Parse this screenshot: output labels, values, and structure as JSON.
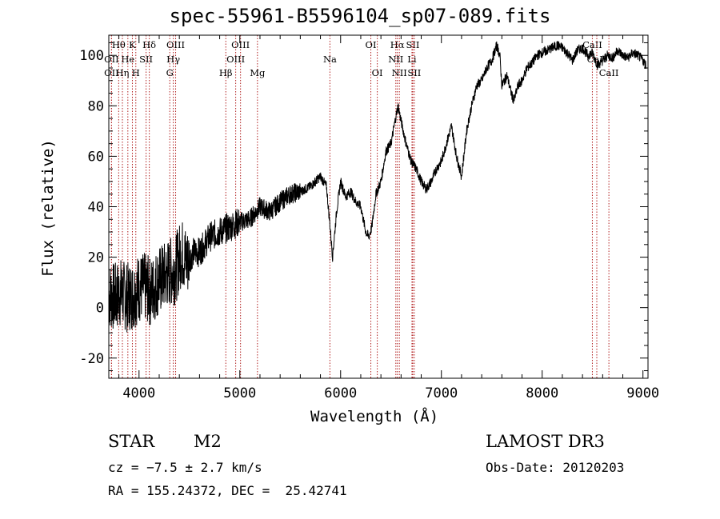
{
  "chart_data": {
    "type": "line",
    "title": "spec-55961-B5596104_sp07-089.fits",
    "xlabel": "Wavelength (Å)",
    "ylabel": "Flux (relative)",
    "xlim": [
      3700,
      9050
    ],
    "ylim": [
      -28,
      108
    ],
    "xticks": [
      4000,
      5000,
      6000,
      7000,
      8000,
      9000
    ],
    "yticks": [
      -20,
      0,
      20,
      40,
      60,
      80,
      100
    ],
    "series": [
      {
        "name": "spectrum",
        "x": [
          3700,
          3760,
          3820,
          3880,
          3940,
          4000,
          4060,
          4120,
          4180,
          4240,
          4300,
          4360,
          4420,
          4480,
          4540,
          4600,
          4700,
          4800,
          4900,
          5000,
          5100,
          5200,
          5300,
          5400,
          5500,
          5600,
          5700,
          5800,
          5860,
          5900,
          5920,
          5960,
          6000,
          6050,
          6100,
          6150,
          6200,
          6250,
          6280,
          6310,
          6350,
          6400,
          6450,
          6500,
          6550,
          6570,
          6600,
          6650,
          6700,
          6750,
          6800,
          6850,
          6900,
          6950,
          7000,
          7050,
          7100,
          7150,
          7200,
          7250,
          7300,
          7350,
          7400,
          7450,
          7500,
          7550,
          7580,
          7600,
          7650,
          7700,
          7720,
          7760,
          7800,
          7850,
          7900,
          7950,
          8000,
          8050,
          8100,
          8150,
          8200,
          8250,
          8300,
          8350,
          8400,
          8450,
          8500,
          8550,
          8600,
          8650,
          8700,
          8750,
          8800,
          8850,
          8900,
          8950,
          9000,
          9030
        ],
        "y": [
          5,
          4,
          6,
          4,
          5,
          8,
          8,
          6,
          10,
          12,
          14,
          15,
          22,
          18,
          22,
          22,
          28,
          30,
          32,
          34,
          35,
          40,
          38,
          42,
          45,
          46,
          48,
          52,
          48,
          30,
          20,
          38,
          50,
          44,
          46,
          42,
          40,
          30,
          28,
          32,
          45,
          50,
          62,
          65,
          76,
          80,
          74,
          65,
          58,
          55,
          50,
          47,
          50,
          55,
          58,
          65,
          72,
          60,
          52,
          70,
          80,
          88,
          90,
          95,
          98,
          104,
          100,
          88,
          92,
          84,
          82,
          88,
          90,
          95,
          97,
          100,
          101,
          102,
          103,
          104,
          103,
          101,
          98,
          102,
          103,
          100,
          101,
          96,
          98,
          100,
          99,
          102,
          100,
          99,
          101,
          100,
          98,
          96
        ]
      }
    ],
    "lines": [
      {
        "label": "Hθ",
        "x": 3798,
        "row": 0
      },
      {
        "label": "OII",
        "x": 3727,
        "row": 1
      },
      {
        "label": "OII",
        "x": 3727,
        "row": 2
      },
      {
        "label": "K",
        "x": 3934,
        "row": 0
      },
      {
        "label": "He",
        "x": 3889,
        "row": 1
      },
      {
        "label": "Hη",
        "x": 3835,
        "row": 2
      },
      {
        "label": "Hδ",
        "x": 4102,
        "row": 0
      },
      {
        "label": "SII",
        "x": 4070,
        "row": 1
      },
      {
        "label": "H",
        "x": 3968,
        "row": 2
      },
      {
        "label": "OIII",
        "x": 4363,
        "row": 0
      },
      {
        "label": "Hγ",
        "x": 4340,
        "row": 1
      },
      {
        "label": "G",
        "x": 4305,
        "row": 2
      },
      {
        "label": "OIII",
        "x": 5007,
        "row": 0
      },
      {
        "label": "OIII",
        "x": 4959,
        "row": 1
      },
      {
        "label": "Hβ",
        "x": 4861,
        "row": 2
      },
      {
        "label": "Mg",
        "x": 5175,
        "row": 2
      },
      {
        "label": "Na",
        "x": 5894,
        "row": 1
      },
      {
        "label": "OI",
        "x": 6300,
        "row": 0
      },
      {
        "label": "OI",
        "x": 6364,
        "row": 2
      },
      {
        "label": "Hα",
        "x": 6563,
        "row": 0
      },
      {
        "label": "SII",
        "x": 6716,
        "row": 0
      },
      {
        "label": "NII",
        "x": 6548,
        "row": 1
      },
      {
        "label": "Li",
        "x": 6708,
        "row": 1
      },
      {
        "label": "NII",
        "x": 6583,
        "row": 2
      },
      {
        "label": "SII",
        "x": 6731,
        "row": 2
      },
      {
        "label": "CaII",
        "x": 8498,
        "row": 0
      },
      {
        "label": "CaII",
        "x": 8542,
        "row": 1
      },
      {
        "label": "CaII",
        "x": 8662,
        "row": 2
      }
    ]
  },
  "info": {
    "object_class": "STAR",
    "subclass": "M2",
    "cz": "cz = −7.5 ± 2.7 km/s",
    "coords": "RA = 155.24372, DEC =  25.42741",
    "survey": "LAMOST DR3",
    "obs_date": "Obs-Date: 20120203"
  },
  "colors": {
    "axis": "#000000",
    "line_marker": "#b22222",
    "spectrum": "#000000"
  }
}
